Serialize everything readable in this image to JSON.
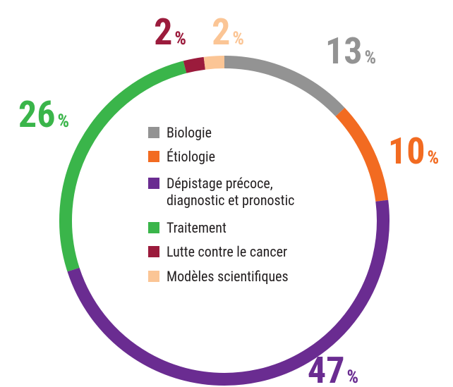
{
  "chart_data": {
    "type": "donut",
    "categories": [
      "Biologie",
      "Étiologie",
      "Dépistage précoce,\ndiagnostic et pronostic",
      "Traitement",
      "Lutte contre le cancer",
      "Modèles scientifiques"
    ],
    "values": [
      13,
      10,
      47,
      26,
      2,
      2
    ],
    "value_labels": [
      "13 %",
      "10 %",
      "47 %",
      "26 %",
      "2 %",
      "2 %"
    ],
    "colors": [
      "#939393",
      "#f26b21",
      "#6a2c91",
      "#3ab54a",
      "#9b1b3c",
      "#fbc595"
    ]
  }
}
